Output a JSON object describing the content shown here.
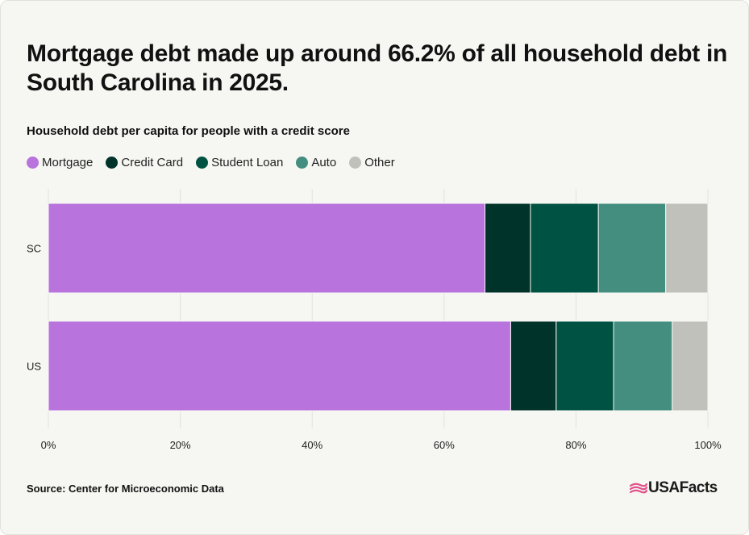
{
  "title": "Mortgage debt made up around 66.2% of all household debt in South Carolina in 2025.",
  "subtitle": "Household debt per capita for people with a credit score",
  "source": "Source: Center for Microeconomic Data",
  "logo_text": "USAFacts",
  "colors": {
    "mortgage": "#b873dd",
    "credit_card": "#00332a",
    "student_loan": "#005243",
    "auto": "#438e7f",
    "other": "#c0c1bb",
    "logo_mark": "#e0508a"
  },
  "chart_data": {
    "type": "bar",
    "orientation": "horizontal",
    "stacked": true,
    "categories": [
      "SC",
      "US"
    ],
    "series": [
      {
        "name": "Mortgage",
        "color": "#b873dd",
        "values": [
          66.2,
          70.1
        ]
      },
      {
        "name": "Credit Card",
        "color": "#00332a",
        "values": [
          6.9,
          6.9
        ]
      },
      {
        "name": "Student Loan",
        "color": "#005243",
        "values": [
          10.3,
          8.7
        ]
      },
      {
        "name": "Auto",
        "color": "#438e7f",
        "values": [
          10.2,
          8.9
        ]
      },
      {
        "name": "Other",
        "color": "#c0c1bb",
        "values": [
          6.4,
          5.4
        ]
      }
    ],
    "xlim": [
      0,
      100
    ],
    "xticks": [
      "0%",
      "20%",
      "40%",
      "60%",
      "80%",
      "100%"
    ],
    "grid": true,
    "legend_position": "top-left"
  }
}
